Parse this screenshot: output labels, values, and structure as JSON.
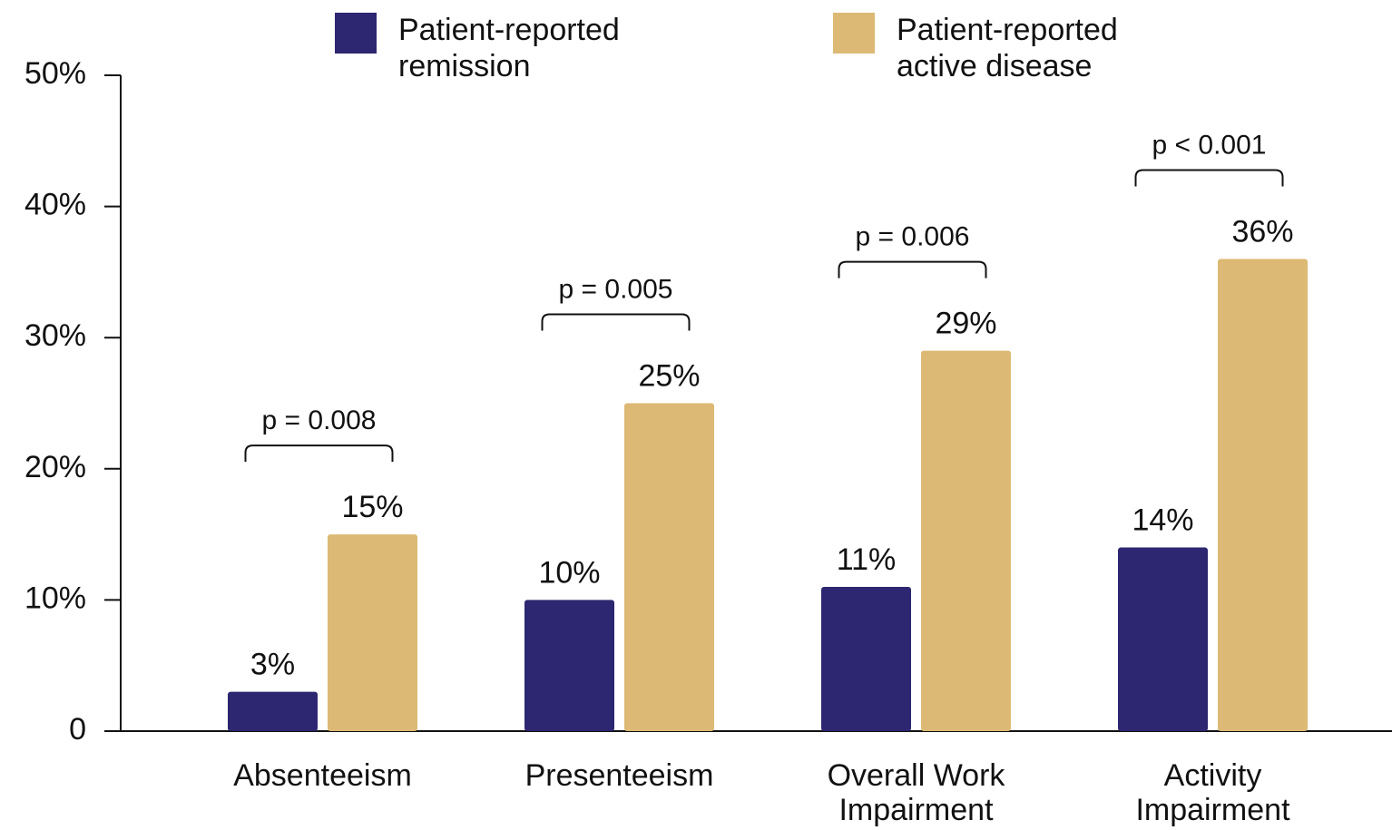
{
  "chart_data": {
    "type": "bar",
    "categories": [
      "Absenteeism",
      "Presenteeism",
      "Overall Work Impairment",
      "Activity Impairment"
    ],
    "series": [
      {
        "name": "Patient-reported remission",
        "color": "#2c2770",
        "values": [
          3,
          10,
          11,
          14
        ],
        "value_labels": [
          "3%",
          "10%",
          "11%",
          "14%"
        ]
      },
      {
        "name": "Patient-reported active disease",
        "color": "#dcb974",
        "values": [
          15,
          25,
          29,
          36
        ],
        "value_labels": [
          "15%",
          "25%",
          "29%",
          "36%"
        ]
      }
    ],
    "annotations": [
      "p = 0.008",
      "p = 0.005",
      "p = 0.006",
      "p < 0.001"
    ],
    "ylim": [
      0,
      50
    ],
    "yticks": [
      0,
      {
        "value": 10,
        "label": "10%"
      },
      {
        "value": 20,
        "label": "20%"
      },
      {
        "value": 30,
        "label": "30%"
      },
      {
        "value": 40,
        "label": "40%"
      },
      {
        "value": 50,
        "label": "50%"
      }
    ],
    "legend": "top"
  }
}
